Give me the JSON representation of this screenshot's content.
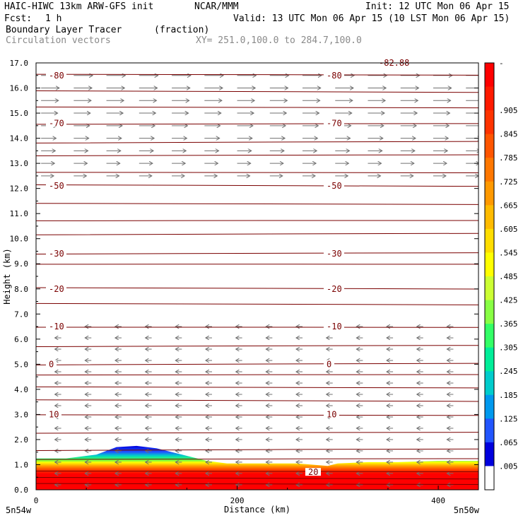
{
  "header": {
    "model": "HAIC-HIWC 13km ARW-GFS init",
    "org": "NCAR/MMM",
    "init": "Init: 12 UTC Mon 06 Apr 15",
    "fcst_label": "Fcst:",
    "fcst_value": "1 h",
    "valid": "Valid: 13 UTC Mon 06 Apr 15 (10 LST Mon 06 Apr 15)",
    "field": "Boundary Layer Tracer",
    "units": "(fraction)",
    "vectors": "Circulation vectors",
    "xy": "XY= 251.0,100.0 to 284.7,100.0"
  },
  "chart_data": {
    "type": "heatmap",
    "title": "Boundary Layer Tracer",
    "xlabel": "Distance (km)",
    "ylabel": "Height (km)",
    "xlim": [
      0,
      440
    ],
    "ylim": [
      0.0,
      17.0
    ],
    "x_ticks": [
      0,
      200,
      400
    ],
    "x_tick_labels": [
      "0",
      "200",
      "400"
    ],
    "x_end_labels": [
      "5n54w",
      "5n50w"
    ],
    "y_ticks": [
      0.0,
      1.0,
      2.0,
      3.0,
      4.0,
      5.0,
      6.0,
      7.0,
      8.0,
      9.0,
      10.0,
      11.0,
      12.0,
      13.0,
      14.0,
      15.0,
      16.0,
      17.0
    ],
    "y_tick_labels": [
      "0.0",
      "1.0",
      "2.0",
      "3.0",
      "4.0",
      "5.0",
      "6.0",
      "7.0",
      "8.0",
      "9.0",
      "10.0",
      "11.0",
      "12.0",
      "13.0",
      "14.0",
      "15.0",
      "16.0",
      "17.0"
    ],
    "colorbar": {
      "labels": [
        "-",
        ".905",
        ".845",
        ".785",
        ".725",
        ".665",
        ".605",
        ".545",
        ".485",
        ".425",
        ".365",
        ".305",
        ".245",
        ".185",
        ".125",
        ".065",
        ".005"
      ],
      "colors": [
        "#ff0000",
        "#ff1a00",
        "#ff3300",
        "#ff5500",
        "#ff7700",
        "#ff9900",
        "#ffbb00",
        "#ffdd00",
        "#ffff00",
        "#ccff33",
        "#88ff44",
        "#33ff66",
        "#00ee99",
        "#00cccc",
        "#0099ee",
        "#2255ff",
        "#0000dd",
        "#ffffff"
      ]
    },
    "boundary_layer_top_km": {
      "x": [
        0,
        30,
        60,
        80,
        100,
        120,
        170,
        190,
        230,
        260,
        290,
        300,
        330,
        360,
        400,
        440
      ],
      "top": [
        1.25,
        1.25,
        1.4,
        1.7,
        1.75,
        1.65,
        1.15,
        1.05,
        1.05,
        1.05,
        0.95,
        1.05,
        1.1,
        1.1,
        1.15,
        1.15
      ]
    },
    "contours": [
      {
        "value": -82.88,
        "label": "-82.88",
        "height_km": 17.0
      },
      {
        "value": -80,
        "label": "-80",
        "height_km": 16.5
      },
      {
        "value": -70,
        "label": "-70",
        "height_km": 14.6
      },
      {
        "value": -50,
        "label": "-50",
        "height_km": 12.1
      },
      {
        "value": -30,
        "label": "-30",
        "height_km": 9.4
      },
      {
        "value": -20,
        "label": "-20",
        "height_km": 8.0
      },
      {
        "value": -10,
        "label": "-10",
        "height_km": 6.5
      },
      {
        "value": 0,
        "label": "0",
        "height_km": 5.0
      },
      {
        "value": 10,
        "label": "10",
        "height_km": 3.0
      },
      {
        "value": 20,
        "label": "20",
        "height_km": 0.7
      }
    ],
    "contour_levels_km": [
      0.25,
      0.45,
      0.7,
      1.2,
      1.6,
      2.3,
      3.0,
      3.55,
      4.05,
      4.55,
      5.0,
      5.75,
      6.5,
      7.4,
      8.0,
      8.95,
      9.4,
      10.2,
      10.75,
      11.4,
      12.1,
      12.6,
      13.3,
      13.85,
      14.6,
      15.25,
      15.85,
      16.5,
      17.0
    ],
    "wind_vectors_upper": {
      "from_km": 12.5,
      "to_km": 16.9,
      "direction": "east"
    },
    "wind_vectors_lower": {
      "from_km": 0.2,
      "to_km": 6.5,
      "direction": "west"
    }
  }
}
